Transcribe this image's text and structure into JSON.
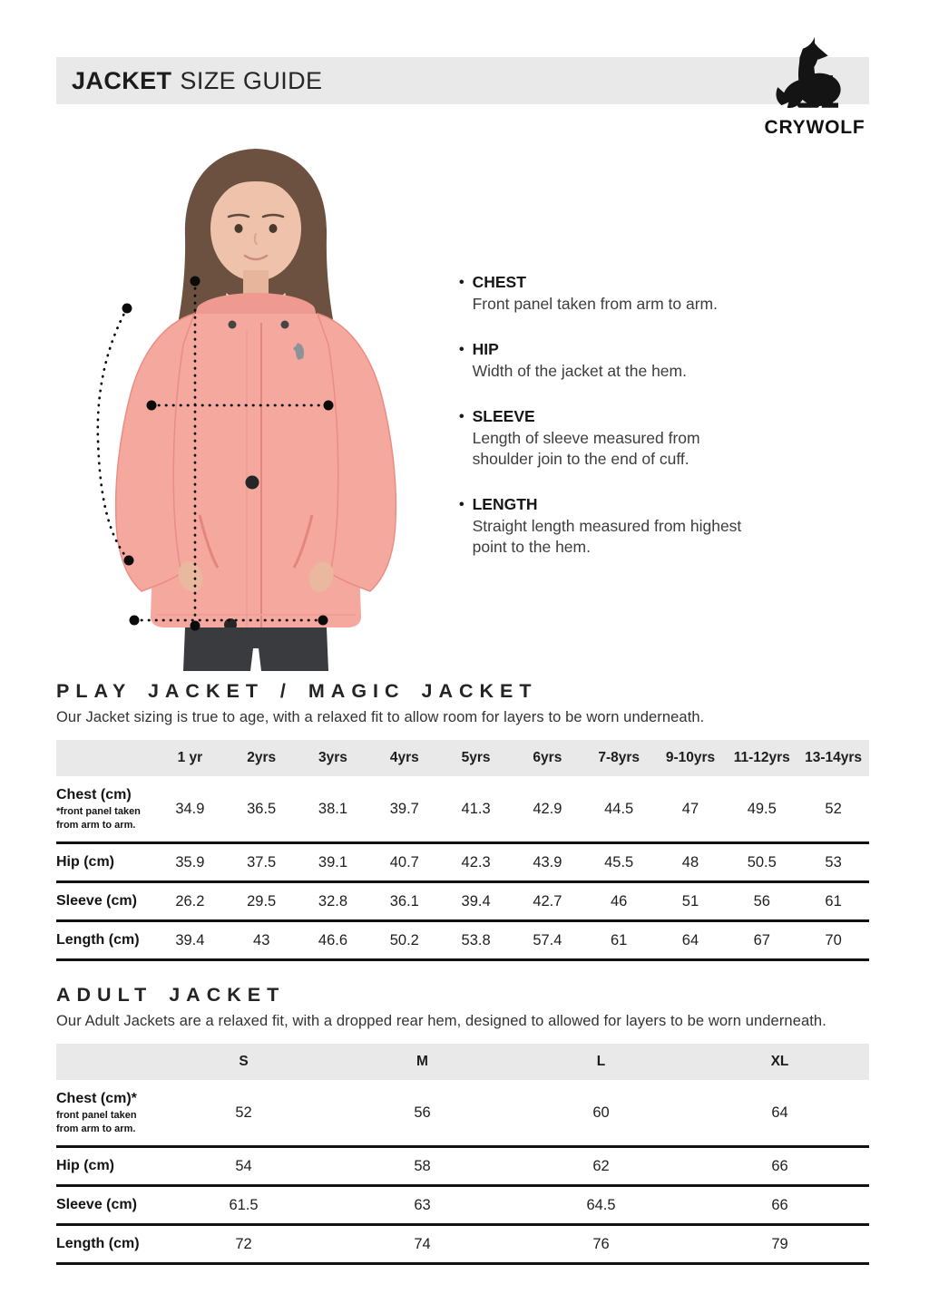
{
  "header": {
    "title_bold": "JACKET",
    "title_light": "SIZE GUIDE"
  },
  "brand": {
    "name": "CRYWOLF",
    "logo_icon": "howling-wolf-icon"
  },
  "measure_guide": {
    "items": [
      {
        "term": "CHEST",
        "desc": "Front panel taken from arm to arm."
      },
      {
        "term": "HIP",
        "desc": "Width of the jacket at the hem."
      },
      {
        "term": "SLEEVE",
        "desc": "Length of sleeve measured from shoulder join to the end of cuff."
      },
      {
        "term": "LENGTH",
        "desc": "Straight length measured from highest point to the hem."
      }
    ]
  },
  "play_table": {
    "heading": "PLAY JACKET / MAGIC JACKET",
    "description": "Our Jacket sizing is true to age, with a relaxed fit to allow room for layers to be worn underneath.",
    "columns": [
      "1 yr",
      "2yrs",
      "3yrs",
      "4yrs",
      "5yrs",
      "6yrs",
      "7-8yrs",
      "9-10yrs",
      "11-12yrs",
      "13-14yrs"
    ],
    "rows": [
      {
        "label": "Chest (cm)",
        "note": "*front panel taken from arm to arm.",
        "values": [
          "34.9",
          "36.5",
          "38.1",
          "39.7",
          "41.3",
          "42.9",
          "44.5",
          "47",
          "49.5",
          "52"
        ]
      },
      {
        "label": "Hip (cm)",
        "values": [
          "35.9",
          "37.5",
          "39.1",
          "40.7",
          "42.3",
          "43.9",
          "45.5",
          "48",
          "50.5",
          "53"
        ]
      },
      {
        "label": "Sleeve (cm)",
        "values": [
          "26.2",
          "29.5",
          "32.8",
          "36.1",
          "39.4",
          "42.7",
          "46",
          "51",
          "56",
          "61"
        ]
      },
      {
        "label": "Length (cm)",
        "values": [
          "39.4",
          "43",
          "46.6",
          "50.2",
          "53.8",
          "57.4",
          "61",
          "64",
          "67",
          "70"
        ]
      }
    ]
  },
  "adult_table": {
    "heading": "ADULT JACKET",
    "description": "Our Adult Jackets are a relaxed fit,  with a dropped rear hem, designed to allowed for layers to be worn underneath.",
    "columns": [
      "S",
      "M",
      "L",
      "XL"
    ],
    "rows": [
      {
        "label": "Chest (cm)*",
        "note": "front panel taken from arm to arm.",
        "values": [
          "52",
          "56",
          "60",
          "64"
        ]
      },
      {
        "label": "Hip (cm)",
        "values": [
          "54",
          "58",
          "62",
          "66"
        ]
      },
      {
        "label": "Sleeve (cm)",
        "values": [
          "61.5",
          "63",
          "64.5",
          "66"
        ]
      },
      {
        "label": "Length (cm)",
        "values": [
          "72",
          "74",
          "76",
          "79"
        ]
      }
    ]
  },
  "colors": {
    "bar_grey": "#E9E9E9",
    "jacket_pink": "#F5A89E",
    "rule_black": "#121212",
    "text_dark": "#1C1C1C"
  }
}
